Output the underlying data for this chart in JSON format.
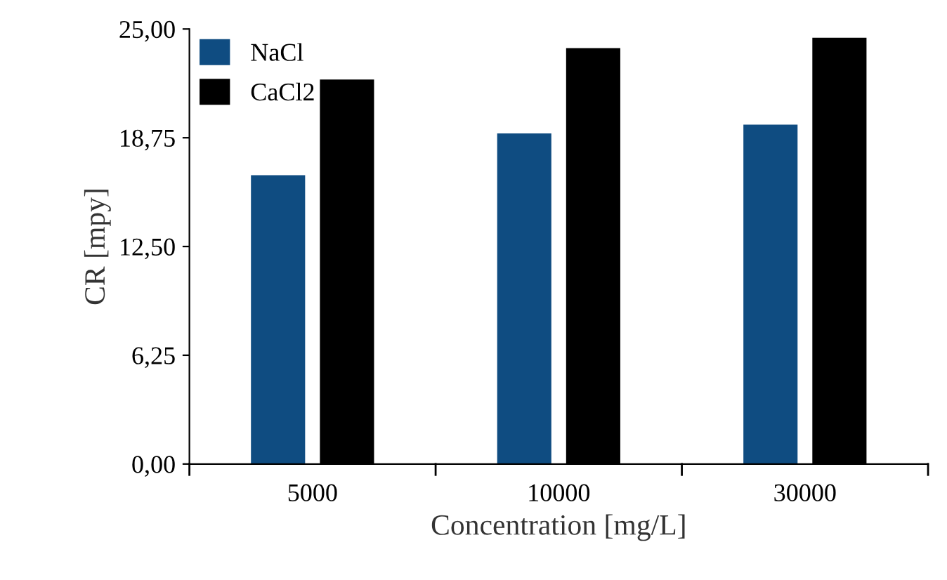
{
  "chart_data": {
    "type": "bar",
    "xlabel": "Concentration [mg/L]",
    "ylabel": "CR [mpy]",
    "categories": [
      "5000",
      "10000",
      "30000"
    ],
    "series": [
      {
        "name": "NaCl",
        "color": "#0f4c81",
        "values": [
          16.6,
          19.0,
          19.5
        ]
      },
      {
        "name": "CaCl2",
        "color": "#000000",
        "values": [
          22.1,
          23.9,
          24.5
        ]
      }
    ],
    "ylim": [
      0,
      25
    ],
    "yticks": [
      {
        "value": 0,
        "label": "0,00"
      },
      {
        "value": 6.25,
        "label": "6,25"
      },
      {
        "value": 12.5,
        "label": "12,50"
      },
      {
        "value": 18.75,
        "label": "18,75"
      },
      {
        "value": 25,
        "label": "25,00"
      }
    ],
    "grid": false,
    "legend": "top left"
  }
}
